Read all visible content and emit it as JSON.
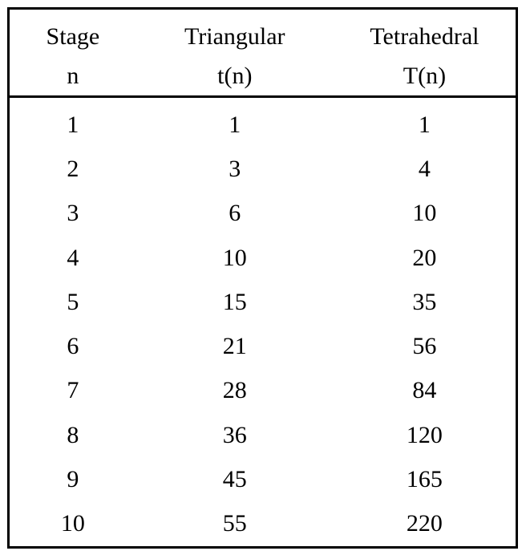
{
  "colors": {
    "background": "#ffffff",
    "border": "#000000",
    "text": "#000000"
  },
  "table": {
    "columns": [
      {
        "title": "Stage",
        "subtitle": "n"
      },
      {
        "title": "Triangular",
        "subtitle": "t(n)"
      },
      {
        "title": "Tetrahedral",
        "subtitle": "T(n)"
      }
    ],
    "rows": [
      [
        "1",
        "1",
        "1"
      ],
      [
        "2",
        "3",
        "4"
      ],
      [
        "3",
        "6",
        "10"
      ],
      [
        "4",
        "10",
        "20"
      ],
      [
        "5",
        "15",
        "35"
      ],
      [
        "6",
        "21",
        "56"
      ],
      [
        "7",
        "28",
        "84"
      ],
      [
        "8",
        "36",
        "120"
      ],
      [
        "9",
        "45",
        "165"
      ],
      [
        "10",
        "55",
        "220"
      ]
    ]
  }
}
